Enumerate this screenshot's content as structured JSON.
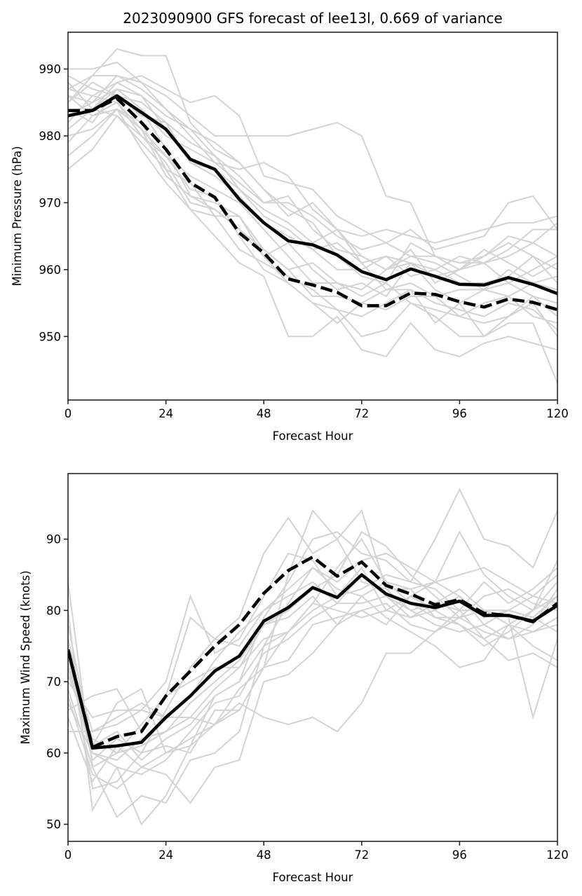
{
  "chart_data": [
    {
      "type": "line",
      "title": "2023090900 GFS forecast of lee13l, 0.669 of variance",
      "xlabel": "Forecast Hour",
      "ylabel": "Minimum Pressure (hPa)",
      "xlim": [
        0,
        120
      ],
      "ylim": [
        940.5,
        995.5
      ],
      "xticks": [
        0,
        24,
        48,
        72,
        96,
        120
      ],
      "yticks": [
        950,
        960,
        970,
        980,
        990
      ],
      "grid": false,
      "legend": "none",
      "x": [
        0,
        6,
        12,
        18,
        24,
        30,
        36,
        42,
        48,
        54,
        60,
        66,
        72,
        78,
        84,
        90,
        96,
        102,
        108,
        114,
        120
      ],
      "series": [
        {
          "name": "deterministic",
          "style": "solid",
          "color": "#000000",
          "values": [
            983.0,
            983.8,
            986.0,
            983.5,
            981.0,
            976.5,
            975.0,
            970.5,
            967.0,
            964.3,
            963.7,
            962.2,
            959.7,
            958.5,
            960.1,
            959.0,
            957.8,
            957.7,
            958.8,
            957.8,
            956.4
          ]
        },
        {
          "name": "mean",
          "style": "dashed",
          "color": "#000000",
          "values": [
            983.8,
            983.8,
            985.6,
            982.0,
            978.0,
            973.0,
            970.8,
            965.5,
            962.5,
            958.6,
            957.7,
            956.6,
            954.6,
            954.6,
            956.5,
            956.3,
            955.2,
            954.4,
            955.6,
            955.1,
            954.0
          ]
        }
      ],
      "members_color": "#d3d3d3",
      "members": [
        [
          990,
          990,
          991,
          988,
          986,
          983,
          980,
          980,
          980,
          980,
          981,
          982,
          980,
          971,
          970,
          962,
          961,
          962,
          965,
          964,
          962
        ],
        [
          985,
          989,
          993,
          992,
          992,
          982,
          978,
          976,
          972,
          968,
          970,
          966,
          965,
          966,
          965,
          964,
          965,
          966,
          967,
          967,
          968
        ],
        [
          988,
          984,
          988,
          989,
          987,
          985,
          986,
          983,
          974,
          973,
          972,
          968,
          966,
          964,
          966,
          963,
          964,
          965,
          970,
          971,
          966
        ],
        [
          986,
          985,
          989,
          988,
          984,
          980,
          976,
          975,
          976,
          974,
          969,
          966,
          961,
          962,
          961,
          960,
          962,
          961,
          962,
          964,
          967
        ],
        [
          975,
          978,
          983,
          980,
          976,
          970,
          969,
          966,
          962,
          958,
          955,
          954,
          950,
          951,
          955,
          953,
          950,
          950,
          952,
          952,
          943
        ],
        [
          977,
          980,
          984,
          978,
          973,
          969,
          965,
          961,
          959,
          950,
          950,
          953,
          948,
          947,
          952,
          948,
          947,
          949,
          950,
          949,
          948
        ],
        [
          987,
          986,
          988,
          986,
          983,
          981,
          977,
          972,
          969,
          967,
          964,
          966,
          962,
          960,
          963,
          958,
          960,
          961,
          958,
          960,
          962
        ],
        [
          984,
          982,
          987,
          984,
          978,
          971,
          970,
          968,
          963,
          960,
          961,
          958,
          956,
          958,
          955,
          954,
          953,
          955,
          956,
          953,
          952
        ],
        [
          982,
          986,
          985,
          981,
          977,
          972,
          971,
          965,
          960,
          958,
          955,
          952,
          955,
          957,
          957,
          952,
          955,
          950,
          953,
          955,
          950
        ],
        [
          989,
          987,
          986,
          983,
          982,
          979,
          977,
          974,
          970,
          970,
          968,
          965,
          963,
          964,
          962,
          962,
          960,
          962,
          964,
          962,
          960
        ],
        [
          980,
          981,
          984,
          982,
          975,
          969,
          968,
          968,
          962,
          964,
          960,
          957,
          958,
          956,
          961,
          957,
          955,
          957,
          958,
          956,
          955
        ],
        [
          983,
          985,
          987,
          986,
          981,
          976,
          974,
          971,
          967,
          965,
          963,
          960,
          960,
          962,
          959,
          960,
          958,
          958,
          959,
          962,
          958
        ],
        [
          986,
          983,
          985,
          980,
          977,
          974,
          972,
          970,
          966,
          962,
          958,
          958,
          957,
          960,
          962,
          961,
          959,
          957,
          960,
          958,
          957
        ],
        [
          981,
          984,
          983,
          979,
          975,
          973,
          968,
          963,
          961,
          959,
          957,
          954,
          953,
          955,
          957,
          955,
          954,
          953,
          955,
          954,
          951
        ],
        [
          987,
          989,
          989,
          987,
          984,
          981,
          979,
          976,
          972,
          969,
          967,
          962,
          959,
          958,
          964,
          962,
          961,
          961,
          963,
          966,
          966
        ],
        [
          985,
          988,
          986,
          985,
          982,
          976,
          975,
          972,
          968,
          966,
          963,
          964,
          961,
          957,
          958,
          956,
          957,
          957,
          956,
          958,
          959
        ],
        [
          979,
          983,
          984,
          981,
          974,
          971,
          969,
          966,
          963,
          960,
          956,
          956,
          955,
          954,
          956,
          956,
          953,
          952,
          953,
          956,
          953
        ],
        [
          988,
          984,
          987,
          984,
          980,
          978,
          976,
          973,
          970,
          971,
          966,
          963,
          962,
          960,
          961,
          959,
          960,
          963,
          961,
          959,
          961
        ]
      ]
    },
    {
      "type": "line",
      "title": "",
      "xlabel": "Forecast Hour",
      "ylabel": "Maximum Wind Speed (knots)",
      "xlim": [
        0,
        120
      ],
      "ylim": [
        47.6,
        99.2
      ],
      "xticks": [
        0,
        24,
        48,
        72,
        96,
        120
      ],
      "yticks": [
        50,
        60,
        70,
        80,
        90
      ],
      "grid": false,
      "legend": "none",
      "x": [
        0,
        6,
        12,
        18,
        24,
        30,
        36,
        42,
        48,
        54,
        60,
        66,
        72,
        78,
        84,
        90,
        96,
        102,
        108,
        114,
        120
      ],
      "series": [
        {
          "name": "deterministic",
          "style": "solid",
          "color": "#000000",
          "values": [
            74.5,
            60.7,
            61.0,
            61.5,
            65.0,
            68.0,
            71.5,
            73.6,
            78.5,
            80.4,
            83.2,
            81.8,
            85.0,
            82.3,
            81.0,
            80.4,
            81.3,
            79.3,
            79.3,
            78.5,
            80.7
          ]
        },
        {
          "name": "mean",
          "style": "dashed",
          "color": "#000000",
          "values": [
            74.5,
            60.8,
            62.3,
            63.0,
            68.0,
            71.5,
            75.0,
            78.0,
            82.4,
            85.6,
            87.5,
            84.8,
            86.8,
            83.5,
            82.3,
            80.8,
            81.5,
            79.6,
            79.3,
            78.4,
            81.0
          ]
        }
      ],
      "members_color": "#d3d3d3",
      "members": [
        [
          63,
          63,
          64,
          66,
          65,
          65,
          64,
          67,
          65,
          64,
          65,
          63,
          67,
          74,
          74,
          77,
          80,
          80,
          79,
          65,
          76
        ],
        [
          80,
          52,
          58,
          50,
          54,
          61,
          68,
          70,
          79,
          84,
          90,
          91,
          88,
          87,
          84,
          90,
          97,
          90,
          89,
          86,
          94
        ],
        [
          84,
          58,
          51,
          54,
          53,
          59,
          60,
          63,
          75,
          81,
          86,
          83,
          82,
          84,
          83,
          84,
          91,
          85,
          82,
          80,
          87
        ],
        [
          78,
          61,
          67,
          69,
          60,
          61,
          64,
          69,
          72,
          85,
          94,
          90,
          94,
          83,
          80,
          81,
          80,
          76,
          73,
          74,
          72
        ],
        [
          70,
          65,
          66,
          66,
          70,
          82,
          74,
          76,
          82,
          88,
          87,
          82,
          86,
          80,
          82,
          84,
          82,
          78,
          76,
          77,
          78
        ],
        [
          66,
          68,
          69,
          63,
          68,
          79,
          76,
          79,
          88,
          93,
          88,
          90,
          84,
          83,
          83,
          79,
          78,
          75,
          77,
          80,
          84
        ],
        [
          72,
          60,
          59,
          62,
          63,
          67,
          70,
          73,
          78,
          80,
          83,
          85,
          91,
          89,
          85,
          82,
          79,
          80,
          80,
          79,
          82
        ],
        [
          75,
          55,
          56,
          60,
          61,
          60,
          66,
          66,
          72,
          77,
          81,
          80,
          79,
          80,
          79,
          80,
          78,
          76,
          78,
          77,
          79
        ],
        [
          68,
          57,
          55,
          58,
          60,
          62,
          64,
          66,
          72,
          73,
          78,
          79,
          80,
          81,
          78,
          77,
          79,
          82,
          83,
          81,
          80
        ],
        [
          73,
          59,
          62,
          60,
          66,
          72,
          76,
          75,
          80,
          83,
          86,
          84,
          87,
          88,
          86,
          84,
          85,
          86,
          84,
          82,
          85
        ],
        [
          65,
          56,
          61,
          58,
          57,
          53,
          58,
          59,
          70,
          71,
          74,
          78,
          82,
          79,
          77,
          75,
          72,
          73,
          78,
          75,
          73
        ],
        [
          71,
          62,
          60,
          64,
          68,
          70,
          72,
          72,
          76,
          77,
          80,
          82,
          83,
          85,
          84,
          83,
          80,
          84,
          81,
          83,
          86
        ],
        [
          69,
          58,
          60,
          61,
          63,
          65,
          69,
          72,
          78,
          79,
          82,
          78,
          80,
          78,
          82,
          80,
          82,
          79,
          80,
          82,
          81
        ],
        [
          76,
          61,
          63,
          59,
          62,
          64,
          68,
          70,
          75,
          77,
          81,
          86,
          90,
          84,
          81,
          79,
          79,
          77,
          76,
          78,
          83
        ],
        [
          67,
          60,
          58,
          57,
          59,
          63,
          67,
          68,
          74,
          76,
          79,
          81,
          81,
          82,
          80,
          78,
          77,
          78,
          80,
          79,
          77
        ],
        [
          74,
          63,
          65,
          67,
          65,
          68,
          73,
          77,
          80,
          82,
          84,
          81,
          85,
          82,
          79,
          81,
          83,
          80,
          78,
          80,
          82
        ]
      ]
    }
  ]
}
